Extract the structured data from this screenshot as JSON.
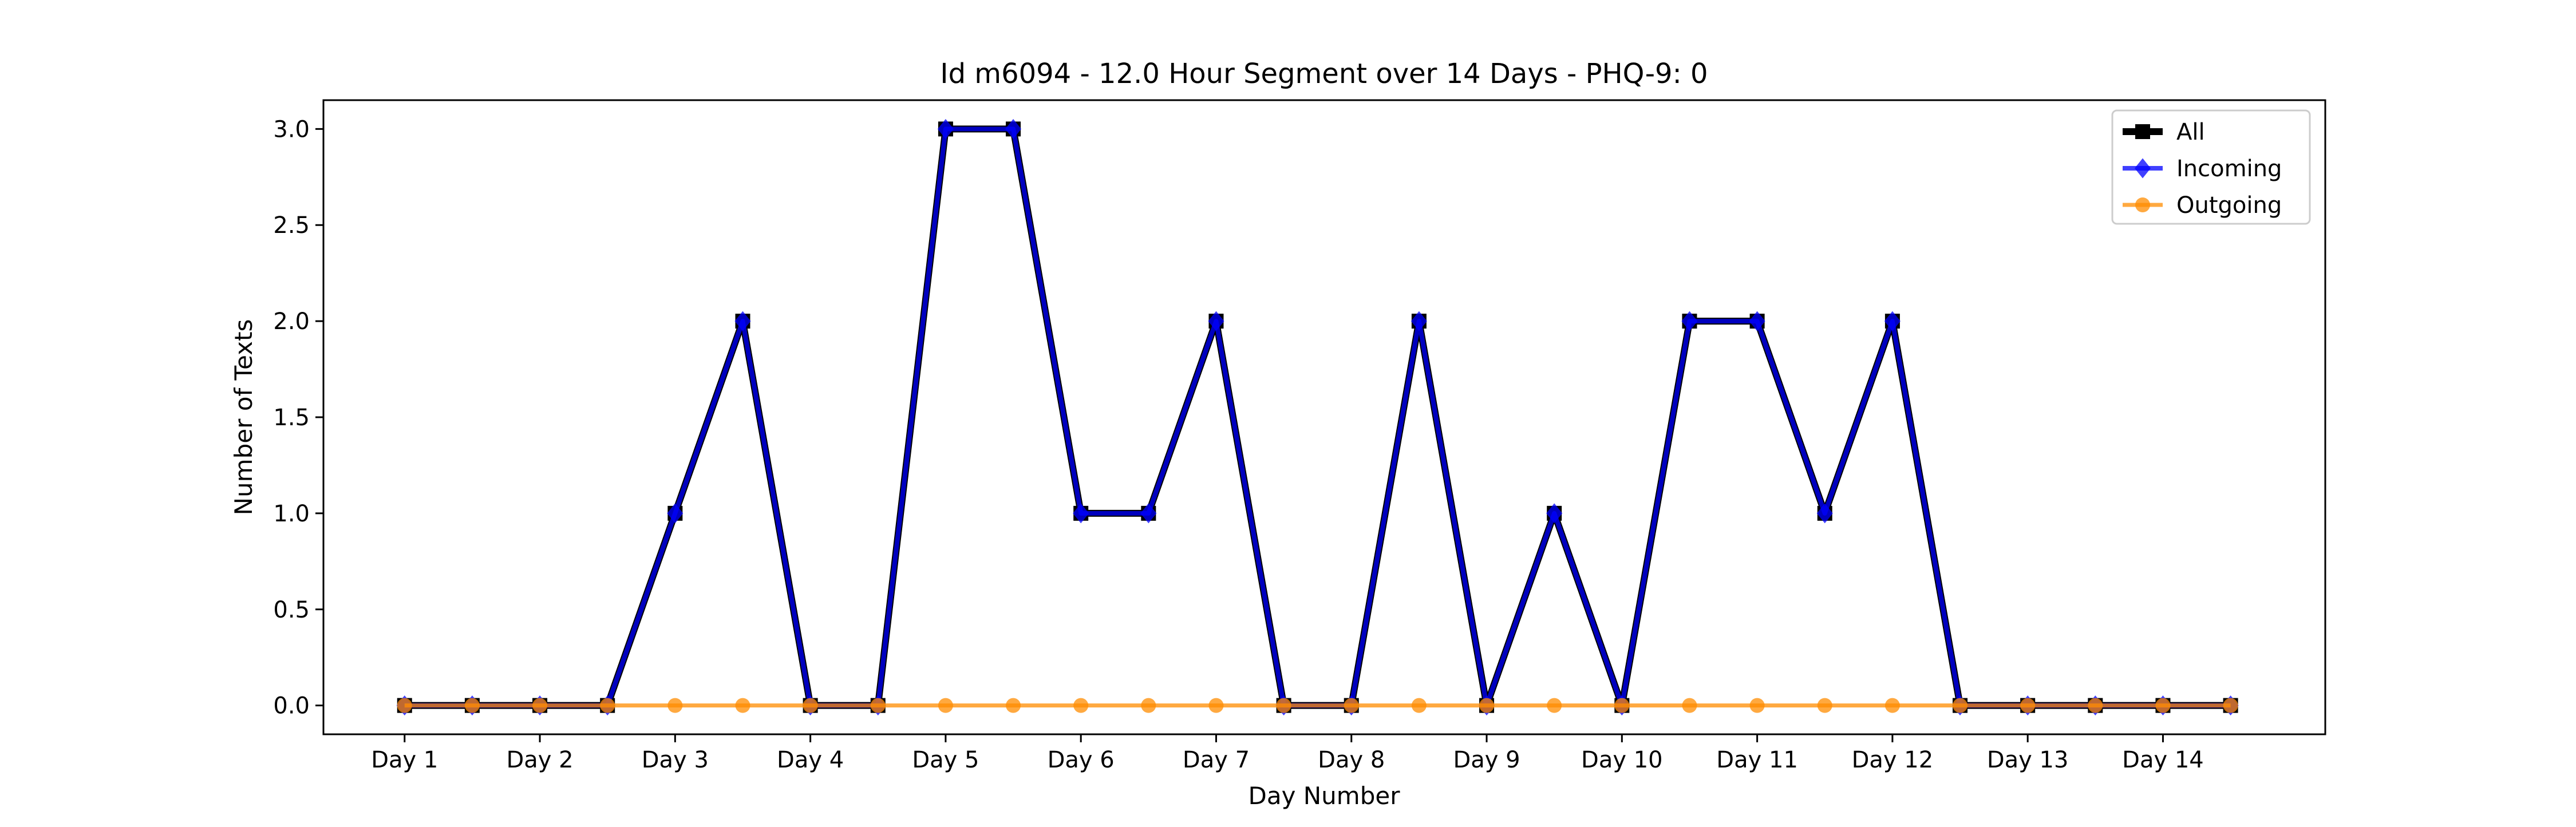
{
  "chart_data": {
    "type": "line",
    "title": "Id m6094 - 12.0 Hour Segment over 14 Days - PHQ-9: 0",
    "xlabel": "Day Number",
    "ylabel": "Number of Texts",
    "ylim": [
      -0.15,
      3.15
    ],
    "yticks": [
      "0.0",
      "0.5",
      "1.0",
      "1.5",
      "2.0",
      "2.5",
      "3.0"
    ],
    "ytick_values": [
      0,
      0.5,
      1,
      1.5,
      2,
      2.5,
      3
    ],
    "xtick_labels": [
      "Day 1",
      "Day 2",
      "Day 3",
      "Day 4",
      "Day 5",
      "Day 6",
      "Day 7",
      "Day 8",
      "Day 9",
      "Day 10",
      "Day 11",
      "Day 12",
      "Day 13",
      "Day 14"
    ],
    "x": [
      1,
      1.5,
      2,
      2.5,
      3,
      3.5,
      4,
      4.5,
      5,
      5.5,
      6,
      6.5,
      7,
      7.5,
      8,
      8.5,
      9,
      9.5,
      10,
      10.5,
      11,
      11.5,
      12,
      12.5,
      13,
      13.5,
      14,
      14.5
    ],
    "xlim": [
      0.4,
      15.2
    ],
    "grid": false,
    "legend_placement": "top-right",
    "series": [
      {
        "name": "All",
        "color": "#000000",
        "marker": "square",
        "values": [
          0,
          0,
          0,
          0,
          1,
          2,
          0,
          0,
          3,
          3,
          1,
          1,
          2,
          0,
          0,
          2,
          0,
          1,
          0,
          2,
          2,
          1,
          2,
          0,
          0,
          0,
          0,
          0
        ]
      },
      {
        "name": "Incoming",
        "color": "#0000ff",
        "marker": "diamond",
        "values": [
          0,
          0,
          0,
          0,
          1,
          2,
          0,
          0,
          3,
          3,
          1,
          1,
          2,
          0,
          0,
          2,
          0,
          1,
          0,
          2,
          2,
          1,
          2,
          0,
          0,
          0,
          0,
          0
        ]
      },
      {
        "name": "Outgoing",
        "color": "#ff8c00",
        "marker": "circle",
        "values": [
          0,
          0,
          0,
          0,
          0,
          0,
          0,
          0,
          0,
          0,
          0,
          0,
          0,
          0,
          0,
          0,
          0,
          0,
          0,
          0,
          0,
          0,
          0,
          0,
          0,
          0,
          0,
          0
        ]
      }
    ]
  }
}
